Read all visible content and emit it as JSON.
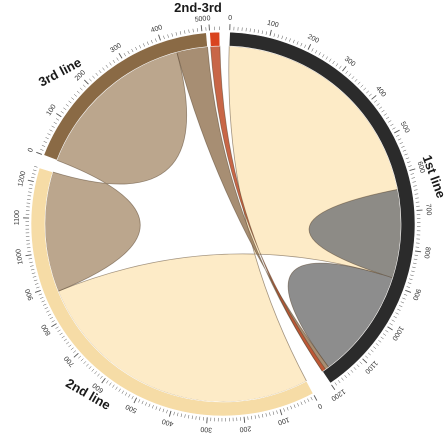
{
  "chart_data": {
    "type": "chord",
    "segments": [
      {
        "id": "first",
        "label": "1st line",
        "color": "#2b2b2b",
        "max": 1200,
        "tick_labels": [
          "0",
          "100",
          "200",
          "300",
          "400",
          "500",
          "600",
          "700",
          "800",
          "900",
          "1000",
          "1100",
          "1200"
        ]
      },
      {
        "id": "second",
        "label": "2nd line",
        "color": "#f6dca6",
        "max": 1240,
        "tick_labels": [
          "0",
          "100",
          "200",
          "300",
          "400",
          "500",
          "600",
          "700",
          "800",
          "900",
          "1000",
          "1100",
          "1200"
        ]
      },
      {
        "id": "third",
        "label": "3rd line",
        "color": "#8a6a45",
        "max": 510,
        "tick_labels": [
          "0",
          "100",
          "200",
          "300",
          "400",
          "500"
        ]
      },
      {
        "id": "second_third",
        "label": "2nd-3rd",
        "color": "#d9441f",
        "max": 20,
        "tick_labels": [
          "0"
        ]
      }
    ],
    "links": [
      {
        "from": "first",
        "from_range": [
          0,
          880
        ],
        "to": "second",
        "to_range": [
          0,
          880
        ],
        "color": "#fde8bf"
      },
      {
        "from": "first",
        "from_range": [
          880,
          1180
        ],
        "to": "first",
        "to_range": [
          640,
          880
        ],
        "color": "#7d7d7d"
      },
      {
        "from": "third",
        "from_range": [
          0,
          430
        ],
        "to": "second",
        "to_range": [
          880,
          1240
        ],
        "color": "#b29a7d"
      },
      {
        "from": "third",
        "from_range": [
          430,
          510
        ],
        "to": "first",
        "to_range": [
          1180,
          1200
        ],
        "color": "#9b7e60"
      },
      {
        "from": "second_third",
        "from_range": [
          0,
          20
        ],
        "to": "first",
        "to_range": [
          1190,
          1200
        ],
        "color": "#c0512d"
      }
    ]
  }
}
